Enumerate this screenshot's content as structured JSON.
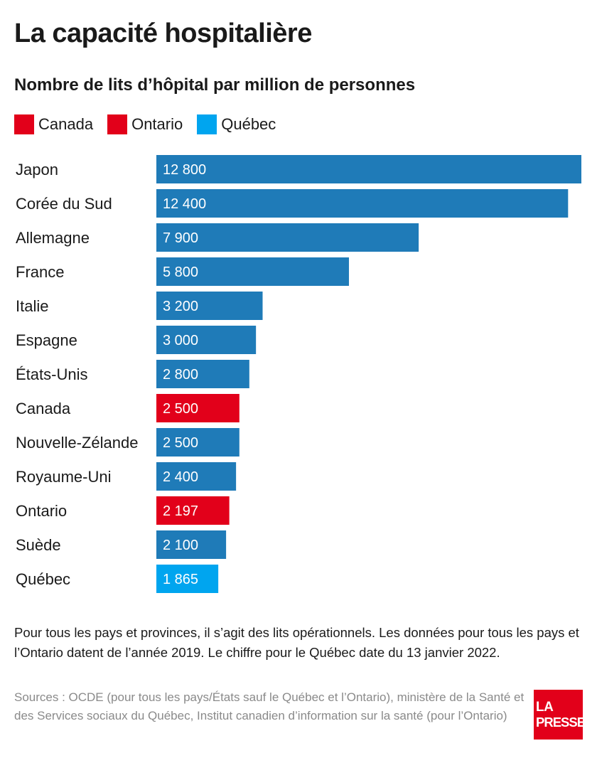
{
  "header": {
    "title": "La capacité hospitalière",
    "subtitle": "Nombre de lits d’hôpital par million de personnes"
  },
  "legend": [
    {
      "label": "Canada",
      "color": "#e2001a"
    },
    {
      "label": "Ontario",
      "color": "#e2001a"
    },
    {
      "label": "Québec",
      "color": "#00a5ef"
    }
  ],
  "colors": {
    "default_bar": "#1f7bb8",
    "canada": "#e2001a",
    "ontario": "#e2001a",
    "quebec": "#00a5ef"
  },
  "chart_data": {
    "type": "bar",
    "orientation": "horizontal",
    "title": "La capacité hospitalière",
    "subtitle": "Nombre de lits d’hôpital par million de personnes",
    "categories": [
      "Japon",
      "Corée du Sud",
      "Allemagne",
      "France",
      "Italie",
      "Espagne",
      "États-Unis",
      "Canada",
      "Nouvelle-Zélande",
      "Royaume-Uni",
      "Ontario",
      "Suède",
      "Québec"
    ],
    "values": [
      12800,
      12400,
      7900,
      5800,
      3200,
      3000,
      2800,
      2500,
      2500,
      2400,
      2197,
      2100,
      1865
    ],
    "value_labels": [
      "12 800",
      "12 400",
      "7 900",
      "5 800",
      "3 200",
      "3 000",
      "2 800",
      "2 500",
      "2 500",
      "2 400",
      "2 197",
      "2 100",
      "1 865"
    ],
    "highlight": {
      "Canada": "canada",
      "Ontario": "ontario",
      "Québec": "quebec"
    },
    "xlim": [
      0,
      12800
    ],
    "grid": false
  },
  "footer": {
    "note": "Pour tous les pays et provinces, il s’agit des lits opérationnels. Les données pour tous les pays et l’Ontario datent de l’année 2019. Le chiffre pour le Québec date du 13 janvier 2022.",
    "sources": "Sources : OCDE (pour tous les pays/États sauf le Québec et l’Ontario), ministère de la Santé et des Services sociaux du Québec, Institut canadien d’information sur la santé (pour l’Ontario)",
    "logo_line1": "LA",
    "logo_line2": "PRESSE"
  }
}
